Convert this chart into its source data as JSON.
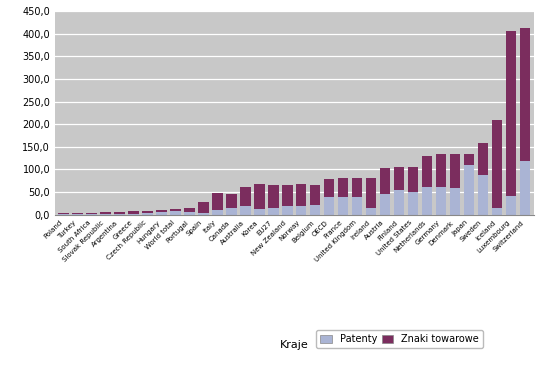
{
  "categories": [
    "Poland",
    "Turkey",
    "South Africa",
    "Slovak Republic",
    "Argentina",
    "Greece",
    "Czech Republic",
    "Hungary",
    "World total",
    "Portugal",
    "Spain",
    "Italy",
    "Canada",
    "Australia",
    "Korea",
    "EU27",
    "New Zealand",
    "Norway",
    "Belgium",
    "OECD",
    "France",
    "United Kingdom",
    "Ireland",
    "Austria",
    "Finland",
    "United States",
    "Netherlands",
    "Germany",
    "Denmark",
    "Japan",
    "Sweden",
    "Iceland",
    "Luxembourg",
    "Switzerland"
  ],
  "patents": [
    0.5,
    0.3,
    0.5,
    1.5,
    0.5,
    2.0,
    3.5,
    5.0,
    8.0,
    5.0,
    3.0,
    10.0,
    14.0,
    20.0,
    12.0,
    15.0,
    18.0,
    20.0,
    22.0,
    38.0,
    40.0,
    40.0,
    14.0,
    45.0,
    55.0,
    50.0,
    60.0,
    62.0,
    58.0,
    110.0,
    88.0,
    15.0,
    42.0,
    118.0
  ],
  "trademarks": [
    2.0,
    2.5,
    3.5,
    3.5,
    4.5,
    5.0,
    5.0,
    5.0,
    5.0,
    10.0,
    25.0,
    38.0,
    32.0,
    42.0,
    55.0,
    50.0,
    48.0,
    47.0,
    43.0,
    40.0,
    42.0,
    42.0,
    68.0,
    57.0,
    50.0,
    55.0,
    70.0,
    72.0,
    75.0,
    25.0,
    70.0,
    195.0,
    365.0,
    295.0
  ],
  "bar_color_patents": "#aab4d4",
  "bar_color_trademarks": "#7b2d5e",
  "background_color": "#c8c8c8",
  "ylabel_values": [
    "0,0",
    "50,0",
    "100,0",
    "150,0",
    "200,0",
    "250,0",
    "300,0",
    "350,0",
    "400,0",
    "450,0"
  ],
  "yticks": [
    0,
    50,
    100,
    150,
    200,
    250,
    300,
    350,
    400,
    450
  ],
  "xlabel": "Kraje",
  "legend_patents": "Patenty",
  "legend_trademarks": "Znaki towarowe",
  "ylim": [
    0,
    450
  ]
}
